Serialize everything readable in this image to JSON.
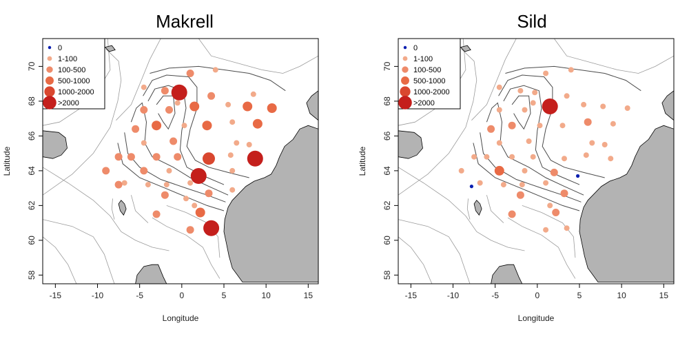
{
  "colors": {
    "zero": "#0a1fb0",
    "c1": "#f2aa8a",
    "c2": "#ee8b6a",
    "c3": "#e86a45",
    "c4": "#d9472f",
    "c5": "#c41f1c",
    "land": "#b3b3b3"
  },
  "axes": {
    "xlabel": "Longitude",
    "ylabel": "Latitude",
    "xlim": [
      -16.5,
      16.2
    ],
    "ylim": [
      57.5,
      71.6
    ],
    "xticks": [
      -15,
      -10,
      -5,
      0,
      5,
      10,
      15
    ],
    "yticks": [
      58,
      60,
      62,
      64,
      66,
      68,
      70
    ]
  },
  "legend": {
    "position": "top-left",
    "entries": [
      {
        "label": "0",
        "cls": 0
      },
      {
        "label": "1-100",
        "cls": 1
      },
      {
        "label": "100-500",
        "cls": 2
      },
      {
        "label": "500-1000",
        "cls": 3
      },
      {
        "label": "1000-2000",
        "cls": 4
      },
      {
        "label": ">2000",
        "cls": 5
      }
    ]
  },
  "panels": [
    {
      "title": "Makrell",
      "points": [
        [
          1.0,
          69.6,
          2
        ],
        [
          4.0,
          69.8,
          1
        ],
        [
          -4.5,
          68.8,
          1
        ],
        [
          -2.0,
          68.6,
          2
        ],
        [
          3.5,
          68.3,
          2
        ],
        [
          -0.3,
          68.5,
          5
        ],
        [
          8.5,
          68.4,
          1
        ],
        [
          -0.5,
          67.9,
          1
        ],
        [
          1.5,
          67.7,
          3
        ],
        [
          5.5,
          67.8,
          1
        ],
        [
          7.8,
          67.7,
          3
        ],
        [
          10.7,
          67.6,
          3
        ],
        [
          -4.5,
          67.5,
          2
        ],
        [
          -1.5,
          67.5,
          2
        ],
        [
          -3.0,
          66.6,
          3
        ],
        [
          0.3,
          66.6,
          1
        ],
        [
          3.0,
          66.6,
          3
        ],
        [
          6.0,
          66.8,
          1
        ],
        [
          9.0,
          66.7,
          3
        ],
        [
          -5.5,
          66.4,
          2
        ],
        [
          -1.0,
          65.7,
          2
        ],
        [
          6.5,
          65.6,
          1
        ],
        [
          8.0,
          65.5,
          1
        ],
        [
          -4.5,
          65.6,
          1
        ],
        [
          -6.0,
          64.8,
          2
        ],
        [
          -3.0,
          64.8,
          2
        ],
        [
          -0.5,
          64.8,
          2
        ],
        [
          3.2,
          64.7,
          4
        ],
        [
          5.8,
          64.9,
          1
        ],
        [
          8.7,
          64.7,
          5
        ],
        [
          -7.5,
          64.8,
          2
        ],
        [
          -4.5,
          64.0,
          2
        ],
        [
          -1.5,
          64.0,
          1
        ],
        [
          2.0,
          63.7,
          5
        ],
        [
          6.0,
          64.0,
          1
        ],
        [
          -6.8,
          63.3,
          1
        ],
        [
          -9.0,
          64.0,
          2
        ],
        [
          -7.5,
          63.2,
          2
        ],
        [
          -4.0,
          63.2,
          1
        ],
        [
          -1.8,
          63.2,
          1
        ],
        [
          1.0,
          63.3,
          1
        ],
        [
          3.2,
          62.7,
          2
        ],
        [
          6.0,
          62.9,
          1
        ],
        [
          -2.0,
          62.6,
          2
        ],
        [
          0.5,
          62.4,
          1
        ],
        [
          1.5,
          62.0,
          1
        ],
        [
          -3.0,
          61.5,
          2
        ],
        [
          2.2,
          61.6,
          3
        ],
        [
          1.0,
          60.6,
          2
        ],
        [
          3.5,
          60.7,
          5
        ]
      ]
    },
    {
      "title": "Sild",
      "points": [
        [
          1.0,
          69.6,
          1
        ],
        [
          4.0,
          69.8,
          1
        ],
        [
          -4.5,
          68.8,
          1
        ],
        [
          -2.0,
          68.6,
          1
        ],
        [
          3.5,
          68.3,
          1
        ],
        [
          -0.3,
          68.5,
          1
        ],
        [
          -0.5,
          67.9,
          1
        ],
        [
          1.5,
          67.7,
          5
        ],
        [
          5.5,
          67.8,
          1
        ],
        [
          7.8,
          67.7,
          1
        ],
        [
          10.7,
          67.6,
          1
        ],
        [
          -4.5,
          67.5,
          1
        ],
        [
          -1.5,
          67.5,
          1
        ],
        [
          -3.0,
          66.6,
          2
        ],
        [
          0.3,
          66.6,
          1
        ],
        [
          3.0,
          66.6,
          1
        ],
        [
          6.0,
          66.8,
          2
        ],
        [
          9.0,
          66.7,
          1
        ],
        [
          -5.5,
          66.4,
          2
        ],
        [
          -1.0,
          65.7,
          1
        ],
        [
          6.5,
          65.6,
          1
        ],
        [
          8.0,
          65.5,
          1
        ],
        [
          -4.5,
          65.6,
          1
        ],
        [
          -6.0,
          64.8,
          1
        ],
        [
          -3.0,
          64.8,
          1
        ],
        [
          -0.5,
          64.8,
          1
        ],
        [
          3.2,
          64.7,
          1
        ],
        [
          5.8,
          64.9,
          1
        ],
        [
          8.7,
          64.7,
          1
        ],
        [
          -7.5,
          64.8,
          1
        ],
        [
          -4.5,
          64.0,
          3
        ],
        [
          -1.5,
          64.0,
          1
        ],
        [
          2.0,
          63.9,
          2
        ],
        [
          4.8,
          63.7,
          0
        ],
        [
          -9.0,
          64.0,
          1
        ],
        [
          -7.8,
          63.1,
          0
        ],
        [
          -6.8,
          63.3,
          1
        ],
        [
          -4.0,
          63.2,
          1
        ],
        [
          -1.8,
          63.2,
          1
        ],
        [
          1.0,
          63.3,
          1
        ],
        [
          3.2,
          62.7,
          2
        ],
        [
          -2.0,
          62.6,
          2
        ],
        [
          1.5,
          62.0,
          1
        ],
        [
          -3.0,
          61.5,
          2
        ],
        [
          2.2,
          61.6,
          2
        ],
        [
          1.0,
          60.6,
          1
        ],
        [
          3.5,
          60.7,
          1
        ]
      ]
    }
  ]
}
